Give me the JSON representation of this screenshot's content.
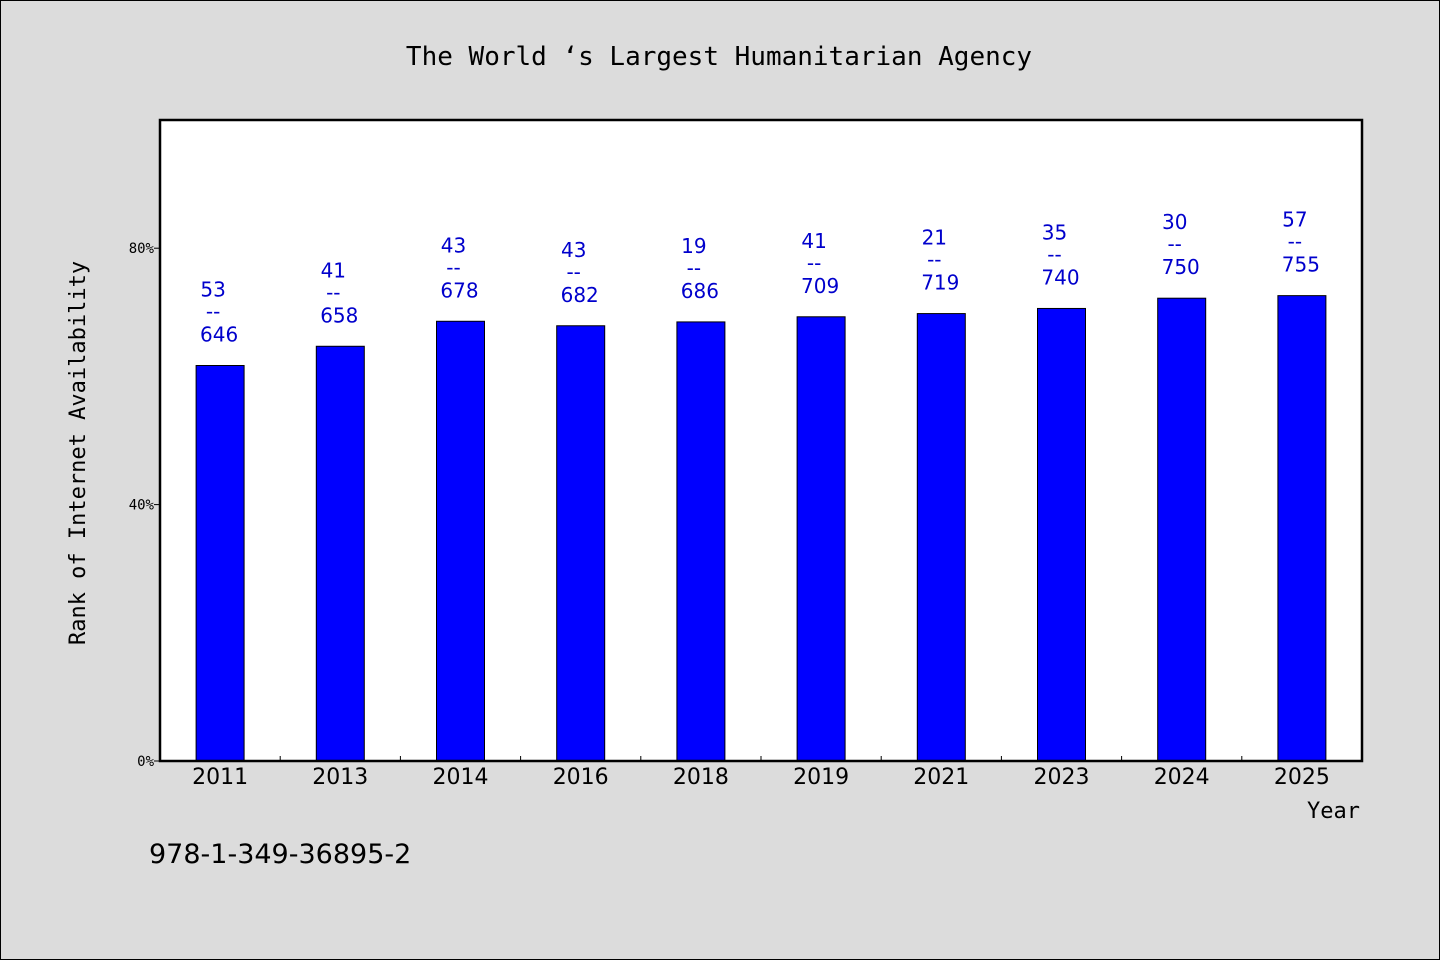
{
  "chart_data": {
    "type": "bar",
    "title": "The World ‘s Largest Humanitarian Agency",
    "xlabel": "Year",
    "ylabel": "Rank of Internet Availability",
    "categories": [
      "2011",
      "2013",
      "2014",
      "2016",
      "2018",
      "2019",
      "2021",
      "2023",
      "2024",
      "2025"
    ],
    "values": [
      61.7,
      64.7,
      68.6,
      67.9,
      68.5,
      69.3,
      69.8,
      70.6,
      72.2,
      72.6
    ],
    "label_top": [
      "53",
      "41",
      "43",
      "43",
      "19",
      "41",
      "21",
      "35",
      "30",
      "57"
    ],
    "label_sep": "--",
    "label_bottom": [
      "646",
      "658",
      "678",
      "682",
      "686",
      "709",
      "719",
      "740",
      "750",
      "755"
    ],
    "ylim": [
      0,
      100
    ],
    "yticks": [
      0,
      40,
      80
    ],
    "ytick_labels": [
      "0%",
      "40%",
      "80%"
    ],
    "grid": false,
    "bar_color": "#0000ff",
    "label_color": "#0000cc"
  },
  "footer": {
    "isbn": "978-1-349-36895-2"
  }
}
